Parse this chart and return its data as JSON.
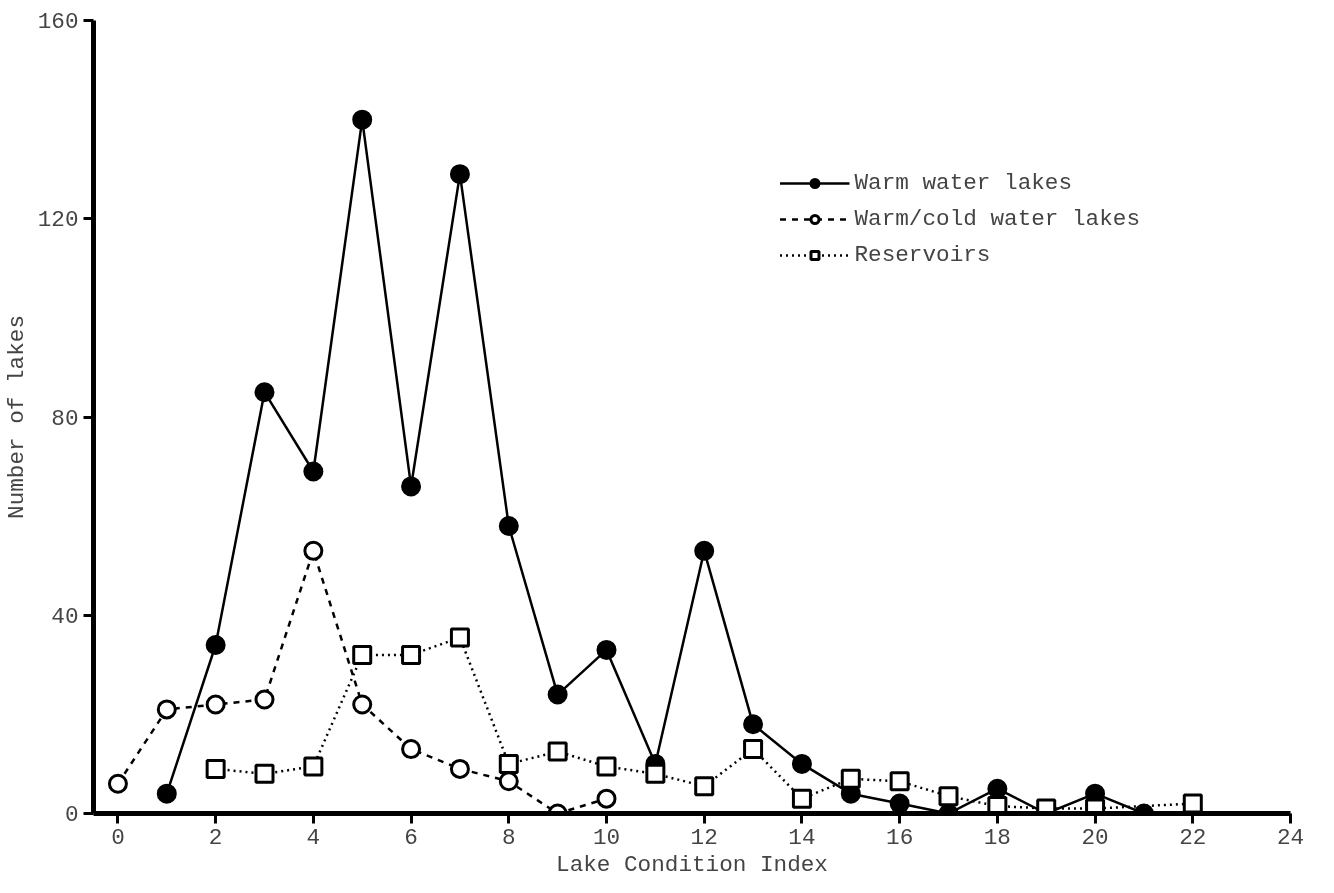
{
  "chart_data": {
    "type": "line",
    "xlabel": "Lake Condition Index",
    "ylabel": "Number of lakes",
    "xlim": [
      -0.5,
      24
    ],
    "ylim": [
      0,
      160
    ],
    "xticks": [
      0,
      2,
      4,
      6,
      8,
      10,
      12,
      14,
      16,
      18,
      20,
      22,
      24
    ],
    "yticks": [
      0,
      40,
      80,
      120,
      160
    ],
    "grid": false,
    "legend": "top right",
    "series": [
      {
        "name": "Warm water lakes",
        "color": "#000000",
        "marker": "circle",
        "line_style": "solid",
        "x": [
          1,
          2,
          3,
          4,
          5,
          6,
          7,
          8,
          9,
          10,
          11,
          12,
          13,
          14,
          15,
          16,
          17,
          18,
          19,
          20,
          21,
          22
        ],
        "values": [
          4,
          34,
          85,
          69,
          140,
          66,
          129,
          58,
          24,
          33,
          10,
          53,
          18,
          10,
          4,
          2,
          0,
          5,
          0,
          4,
          0,
          0
        ]
      },
      {
        "name": "Warm/cold water lakes",
        "color": "#000000",
        "marker": "circle",
        "line_style": "dashed",
        "x": [
          0,
          1,
          2,
          3,
          4,
          5,
          6,
          7,
          8,
          9,
          10
        ],
        "values": [
          6,
          21,
          22,
          23,
          53,
          22,
          13,
          9,
          6.5,
          0,
          3
        ]
      },
      {
        "name": "Reservoirs",
        "color": "#000000",
        "marker": "square",
        "line_style": "dotted",
        "x": [
          2,
          3,
          4,
          5,
          6,
          7,
          8,
          9,
          10,
          11,
          12,
          13,
          14,
          15,
          16,
          17,
          18,
          19,
          20,
          22
        ],
        "values": [
          9,
          8,
          9.5,
          32,
          32,
          35.5,
          10,
          12.5,
          9.5,
          8,
          5.5,
          13,
          3,
          7,
          6.5,
          3.5,
          1.5,
          1,
          1,
          2
        ]
      }
    ]
  }
}
